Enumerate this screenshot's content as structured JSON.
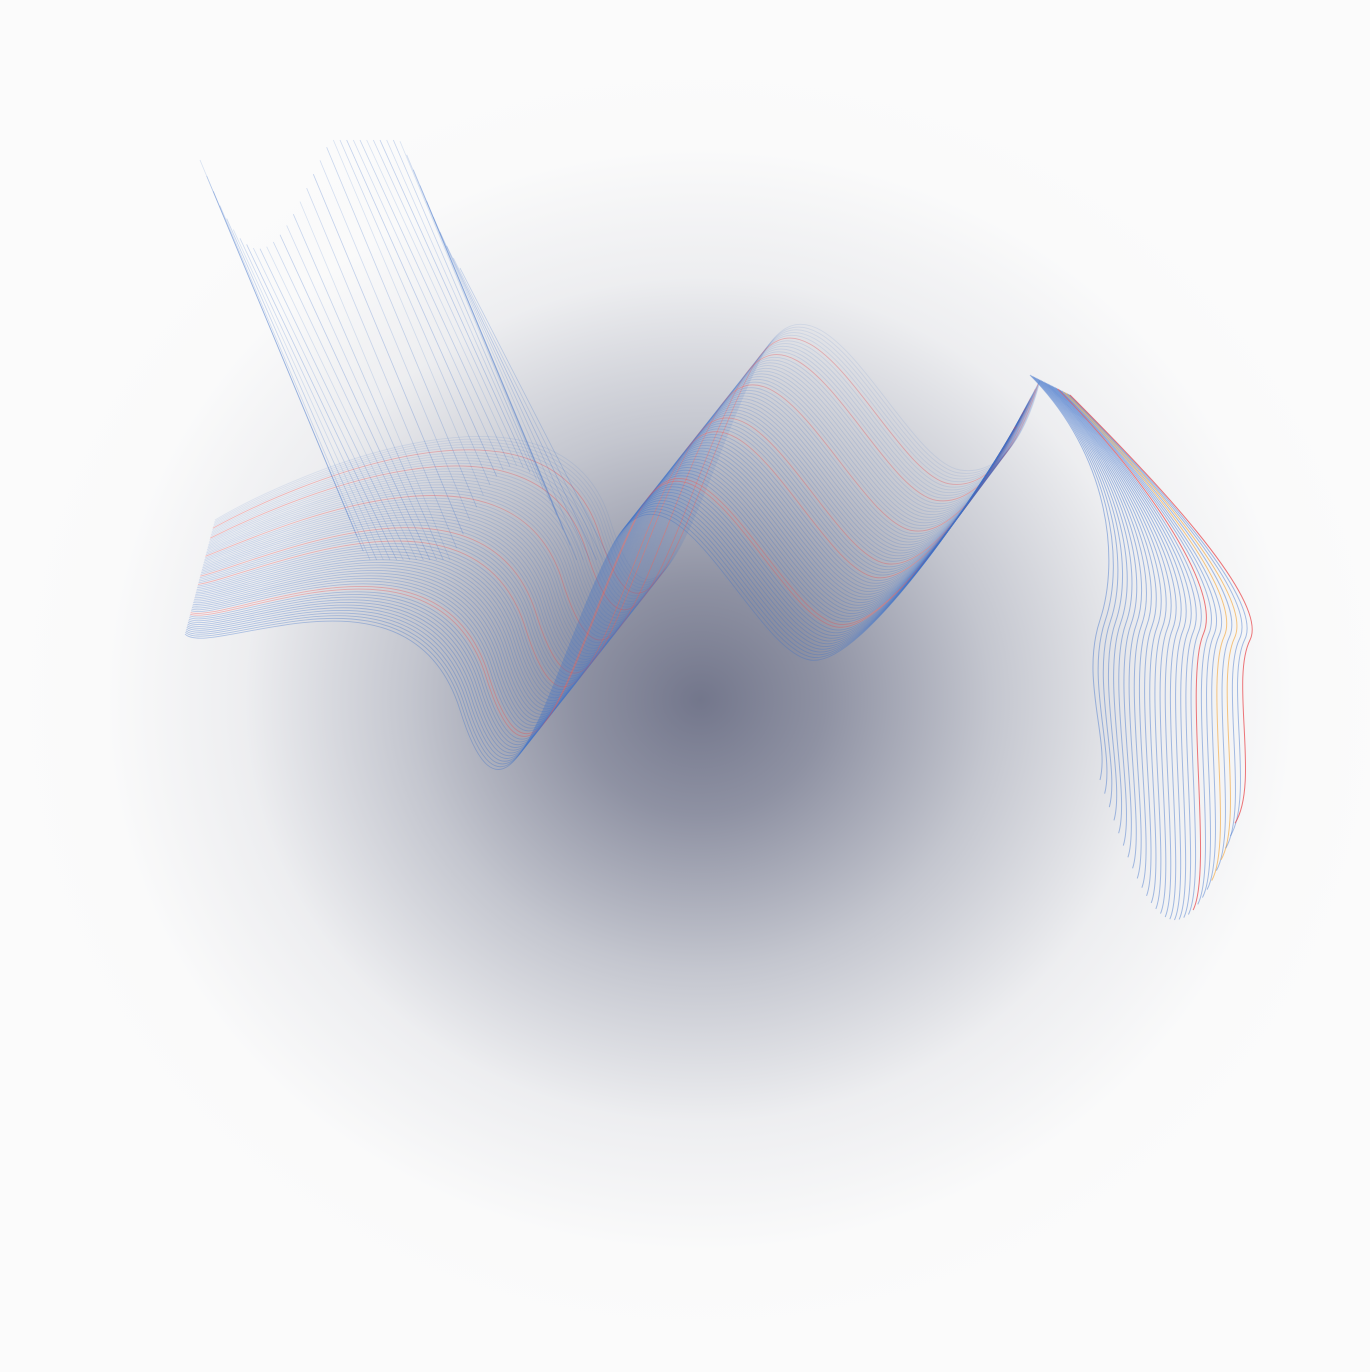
{
  "artwork": {
    "background_color": "#fbfbfb",
    "glow_color": "#60647c",
    "line_colors": {
      "primary": "#3f72c9",
      "accent_red": "#e8484d",
      "accent_orange": "#f2b55f"
    }
  }
}
